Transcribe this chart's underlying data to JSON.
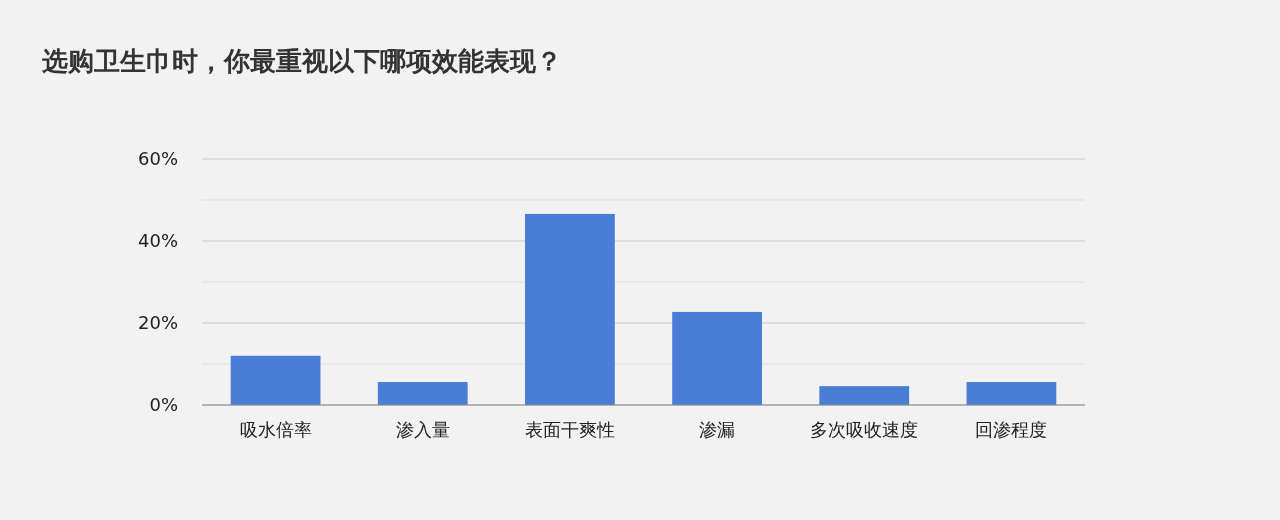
{
  "chart_data": {
    "type": "bar",
    "title": "选购卫生巾时，你最重视以下哪项效能表现？",
    "categories": [
      "吸水倍率",
      "渗入量",
      "表面干爽性",
      "渗漏",
      "多次吸收速度",
      "回渗程度"
    ],
    "values": [
      12,
      5.6,
      46.6,
      22.7,
      4.6,
      5.6
    ],
    "color": "#4a7dd6",
    "ylim": [
      0,
      60
    ],
    "yticks": [
      {
        "value": 0,
        "label": "0%"
      },
      {
        "value": 10,
        "label": null
      },
      {
        "value": 20,
        "label": "20%"
      },
      {
        "value": 30,
        "label": null
      },
      {
        "value": 40,
        "label": "40%"
      },
      {
        "value": 50,
        "label": null
      },
      {
        "value": 60,
        "label": "60%"
      }
    ],
    "grid": "y"
  }
}
